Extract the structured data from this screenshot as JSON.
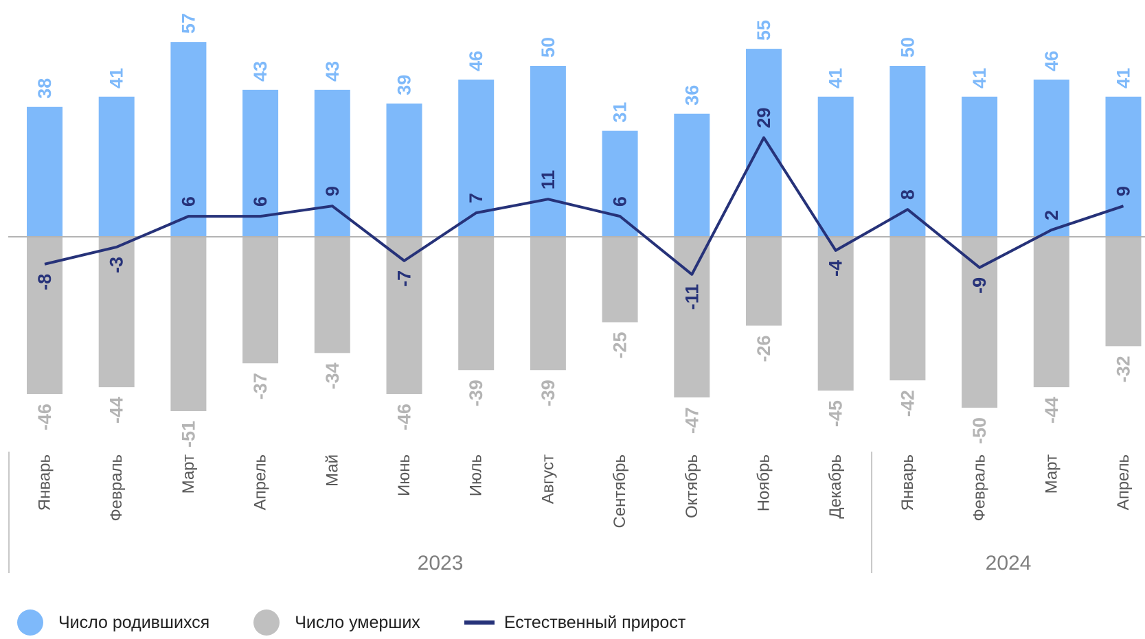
{
  "chart_data": {
    "type": "bar",
    "categories": [
      "Январь",
      "Февраль",
      "Март",
      "Апрель",
      "Май",
      "Июнь",
      "Июль",
      "Август",
      "Сентябрь",
      "Октябрь",
      "Ноябрь",
      "Декабрь",
      "Январь",
      "Февраль",
      "Март",
      "Апрель"
    ],
    "groups": [
      {
        "label": "2023",
        "count": 12
      },
      {
        "label": "2024",
        "count": 4
      }
    ],
    "series": [
      {
        "name": "Число родившихся",
        "kind": "bar",
        "color": "#7EB9FA",
        "values": [
          38,
          41,
          57,
          43,
          43,
          39,
          46,
          50,
          31,
          36,
          55,
          41,
          50,
          41,
          46,
          41
        ]
      },
      {
        "name": "Число умерших",
        "kind": "bar",
        "color": "#C0C0C0",
        "values": [
          -46,
          -44,
          -51,
          -37,
          -34,
          -46,
          -39,
          -39,
          -25,
          -47,
          -26,
          -45,
          -42,
          -50,
          -44,
          -32
        ]
      },
      {
        "name": "Естественный прирост",
        "kind": "line",
        "color": "#263279",
        "values": [
          -8,
          -3,
          6,
          6,
          9,
          -7,
          7,
          11,
          6,
          -11,
          29,
          -4,
          8,
          -9,
          2,
          9
        ]
      }
    ]
  }
}
